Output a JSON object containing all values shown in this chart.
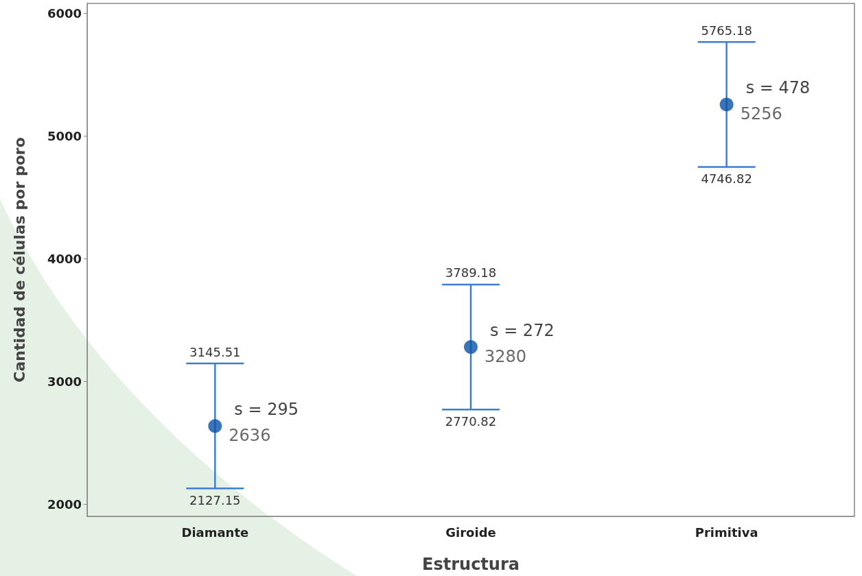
{
  "chart_data": {
    "type": "scatter",
    "xlabel": "Estructura",
    "ylabel": "Cantidad de células por poro",
    "categories": [
      "Diamante",
      "Giroide",
      "Primitiva"
    ],
    "values": [
      2636,
      3280,
      5256
    ],
    "value_labels": [
      "2636",
      "3280",
      "5256"
    ],
    "errors": [
      [
        2127.15,
        3145.51
      ],
      [
        2770.82,
        3789.18
      ],
      [
        4746.82,
        5765.18
      ]
    ],
    "color": "#0a52a8",
    "marker": "circle",
    "ylim": [
      1900,
      6080
    ],
    "yticks": [
      2000,
      3000,
      4000,
      5000,
      6000
    ],
    "grid": false,
    "annotations": [
      {
        "text": "s = 295",
        "x": "Diamante",
        "y": 2636
      },
      {
        "text": "s = 272",
        "x": "Giroide",
        "y": 3280
      },
      {
        "text": "s = 478",
        "x": "Primitiva",
        "y": 5256
      },
      {
        "text": "3145.51",
        "x": "Diamante",
        "y": 3145.51
      },
      {
        "text": "2127.15",
        "x": "Diamante",
        "y": 2127.15
      },
      {
        "text": "3789.18",
        "x": "Giroide",
        "y": 3789.18
      },
      {
        "text": "2770.82",
        "x": "Giroide",
        "y": 2770.82
      },
      {
        "text": "5765.18",
        "x": "Primitiva",
        "y": 5765.18
      },
      {
        "text": "4746.82",
        "x": "Primitiva",
        "y": 4746.82
      }
    ]
  }
}
